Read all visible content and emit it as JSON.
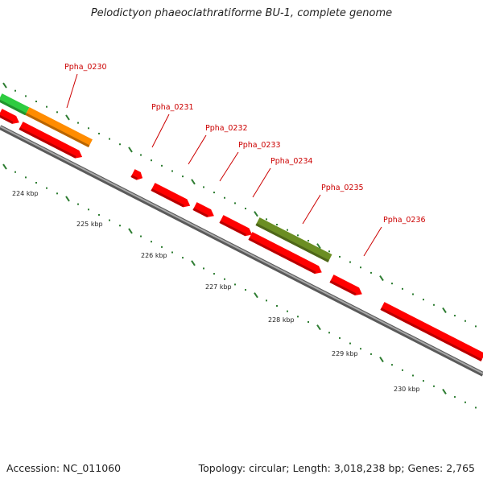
{
  "title": "Pelodictyon phaeoclathratiforme BU-1, complete genome",
  "footer": {
    "accession": "Accession: NC_011060",
    "summary": "Topology: circular; Length: 3,018,238 bp; Genes: 2,765"
  },
  "genes": [
    {
      "id": "Ppha_0230",
      "label": "Ppha_0230",
      "color": "#ff8c00"
    },
    {
      "id": "Ppha_0231",
      "label": "Ppha_0231",
      "color": "#ff0000"
    },
    {
      "id": "Ppha_0232",
      "label": "Ppha_0232",
      "color": "#ff0000"
    },
    {
      "id": "Ppha_0233",
      "label": "Ppha_0233",
      "color": "#ff0000"
    },
    {
      "id": "Ppha_0234",
      "label": "Ppha_0234",
      "color": "#ff0000"
    },
    {
      "id": "Ppha_0235",
      "label": "Ppha_0235",
      "color": "#6b8e23"
    },
    {
      "id": "Ppha_0236",
      "label": "Ppha_0236",
      "color": "#ff0000"
    }
  ],
  "ticks": [
    {
      "label": "224 kbp"
    },
    {
      "label": "225 kbp"
    },
    {
      "label": "226 kbp"
    },
    {
      "label": "227 kbp"
    },
    {
      "label": "228 kbp"
    },
    {
      "label": "229 kbp"
    },
    {
      "label": "230 kbp"
    }
  ],
  "colors": {
    "backbone": "#8c8c8c",
    "tick": "#2e7d32",
    "label": "#cc0000",
    "gene_red": "#ff0000",
    "gene_orange": "#ff8c00",
    "gene_olive": "#6b8e23",
    "gene_green": "#2ecc40"
  }
}
